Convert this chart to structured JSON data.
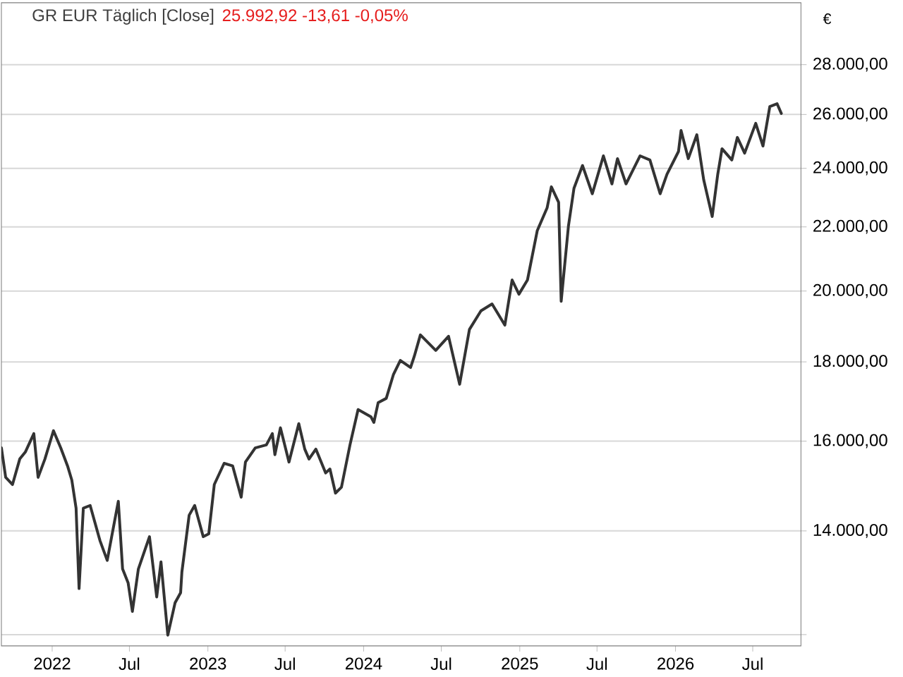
{
  "chart_data": {
    "type": "line",
    "title": "GR EUR  Täglich [Close]",
    "subtitle": "25.992,92  -13,61  -0,05%",
    "ylabel": "€",
    "log": "y",
    "grid": "y",
    "marker": "none",
    "line_style": "solid",
    "xlim": [
      "2021-09-04",
      "2026-10-22"
    ],
    "xticks": [
      {
        "value": "2022-01-01",
        "label": "2022"
      },
      {
        "value": "2022-07-01",
        "label": "Jul"
      },
      {
        "value": "2023-01-01",
        "label": "2023"
      },
      {
        "value": "2023-07-01",
        "label": "Jul"
      },
      {
        "value": "2024-01-01",
        "label": "2024"
      },
      {
        "value": "2024-07-01",
        "label": "Jul"
      },
      {
        "value": "2025-01-01",
        "label": "2025"
      },
      {
        "value": "2025-07-01",
        "label": "Jul"
      },
      {
        "value": "2026-01-01",
        "label": "2026"
      },
      {
        "value": "2026-07-01",
        "label": "Jul"
      }
    ],
    "ylim": [
      11800,
      30700
    ],
    "yticks": [
      {
        "value": 12000,
        "label": null
      },
      {
        "value": 14000,
        "label": "14.000,00"
      },
      {
        "value": 16000,
        "label": "16.000,00"
      },
      {
        "value": 18000,
        "label": "18.000,00"
      },
      {
        "value": 20000,
        "label": "20.000,00"
      },
      {
        "value": 22000,
        "label": "22.000,00"
      },
      {
        "value": 24000,
        "label": "24.000,00"
      },
      {
        "value": 26000,
        "label": "26.000,00"
      },
      {
        "value": 28000,
        "label": "28.000,00"
      }
    ],
    "series": [
      {
        "color": "#333333",
        "x": [
          "2021-09-04",
          "2021-09-14",
          "2021-09-30",
          "2021-10-17",
          "2021-10-30",
          "2021-11-19",
          "2021-11-29",
          "2021-12-15",
          "2022-01-04",
          "2022-01-21",
          "2022-02-06",
          "2022-02-16",
          "2022-02-26",
          "2022-03-05",
          "2022-03-15",
          "2022-03-31",
          "2022-04-23",
          "2022-05-10",
          "2022-06-05",
          "2022-06-15",
          "2022-06-28",
          "2022-07-08",
          "2022-07-22",
          "2022-08-17",
          "2022-09-03",
          "2022-09-13",
          "2022-09-29",
          "2022-10-16",
          "2022-10-29",
          "2022-11-01",
          "2022-11-18",
          "2022-12-01",
          "2022-12-21",
          "2023-01-03",
          "2023-01-16",
          "2023-02-08",
          "2023-02-28",
          "2023-03-20",
          "2023-03-30",
          "2023-04-22",
          "2023-05-18",
          "2023-06-01",
          "2023-06-07",
          "2023-06-20",
          "2023-07-10",
          "2023-08-02",
          "2023-08-16",
          "2023-08-26",
          "2023-09-11",
          "2023-10-04",
          "2023-10-14",
          "2023-10-27",
          "2023-11-10",
          "2023-11-30",
          "2023-12-19",
          "2024-01-18",
          "2024-01-25",
          "2024-02-04",
          "2024-02-23",
          "2024-03-11",
          "2024-03-27",
          "2024-04-20",
          "2024-04-29",
          "2024-05-13",
          "2024-06-18",
          "2024-07-18",
          "2024-08-13",
          "2024-09-05",
          "2024-10-02",
          "2024-10-28",
          "2024-11-27",
          "2024-12-14",
          "2024-12-30",
          "2025-01-19",
          "2025-02-11",
          "2025-03-06",
          "2025-03-16",
          "2025-04-02",
          "2025-04-08",
          "2025-04-25",
          "2025-05-08",
          "2025-05-28",
          "2025-06-20",
          "2025-07-16",
          "2025-08-05",
          "2025-08-18",
          "2025-09-07",
          "2025-10-10",
          "2025-11-02",
          "2025-11-26",
          "2025-12-12",
          "2026-01-08",
          "2026-01-14",
          "2026-01-31",
          "2026-02-20",
          "2026-03-08",
          "2026-03-28",
          "2026-04-10",
          "2026-04-20",
          "2026-05-13",
          "2026-05-26",
          "2026-06-12",
          "2026-07-08",
          "2026-07-25",
          "2026-08-10",
          "2026-08-27",
          "2026-09-06"
        ],
        "values": [
          15840,
          15160,
          15000,
          15580,
          15740,
          16180,
          15160,
          15580,
          16250,
          15840,
          15420,
          15100,
          14480,
          12850,
          14480,
          14540,
          13800,
          13400,
          14630,
          13230,
          12960,
          12420,
          13230,
          13880,
          12690,
          13370,
          11990,
          12580,
          12770,
          13170,
          14330,
          14540,
          13880,
          13940,
          15000,
          15480,
          15420,
          14720,
          15510,
          15840,
          15910,
          16180,
          15680,
          16320,
          15510,
          16420,
          15810,
          15580,
          15810,
          15260,
          15350,
          14810,
          14940,
          15910,
          16770,
          16590,
          16450,
          16940,
          17050,
          17670,
          18040,
          17850,
          18160,
          18740,
          18310,
          18700,
          17410,
          18890,
          19420,
          19620,
          19010,
          20330,
          19910,
          20330,
          21880,
          22630,
          23350,
          22820,
          19700,
          22020,
          23300,
          24100,
          23110,
          24450,
          23450,
          24350,
          23450,
          24450,
          24300,
          23110,
          23790,
          24610,
          25390,
          24350,
          25230,
          23600,
          22340,
          23790,
          24710,
          24300,
          25130,
          24550,
          25660,
          24810,
          26310,
          26420,
          26040
        ]
      }
    ]
  }
}
